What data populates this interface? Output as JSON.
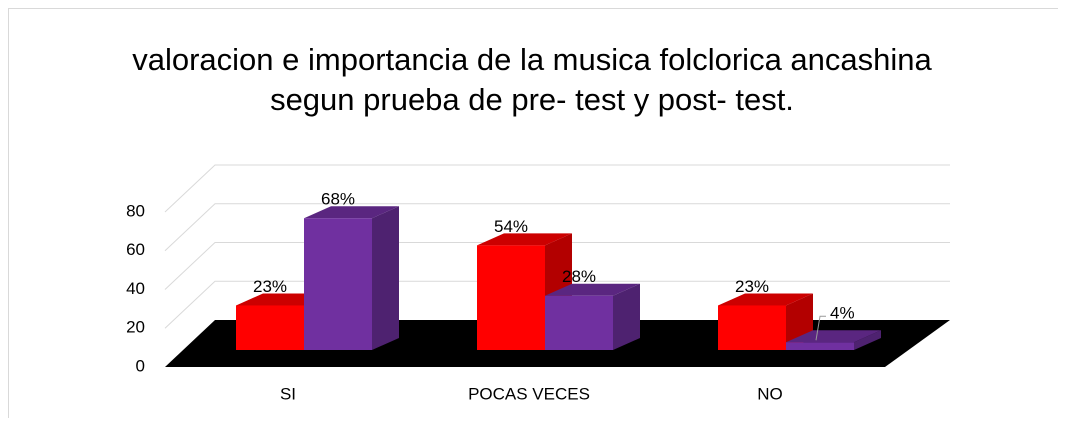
{
  "chart_data": {
    "type": "bar3d",
    "title": "valoracion e importancia de la musica folclorica ancashina segun prueba de pre- test y post- test.",
    "categories": [
      "SI",
      "POCAS  VECES",
      "NO"
    ],
    "series": [
      {
        "color": "#ff0000",
        "values": [
          23,
          54,
          23
        ],
        "value_labels": [
          "23%",
          "54%",
          "23%"
        ]
      },
      {
        "color": "#7030a0",
        "values": [
          68,
          28,
          4
        ],
        "value_labels": [
          "68%",
          "28%",
          "4%"
        ]
      }
    ],
    "ylim": [
      0,
      80
    ],
    "yticks": [
      0,
      20,
      40,
      60,
      80
    ],
    "grid": true
  }
}
